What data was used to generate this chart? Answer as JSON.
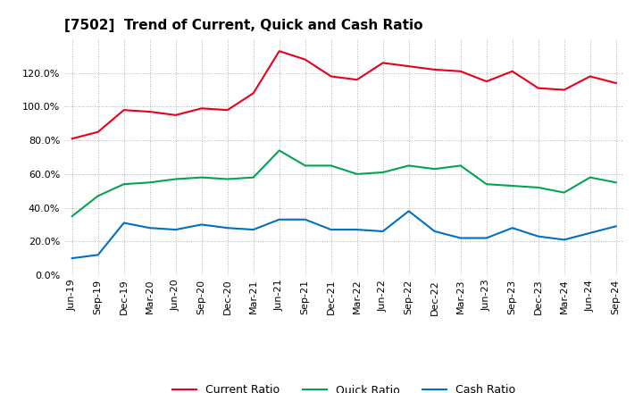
{
  "title": "[7502]  Trend of Current, Quick and Cash Ratio",
  "labels": [
    "Jun-19",
    "Sep-19",
    "Dec-19",
    "Mar-20",
    "Jun-20",
    "Sep-20",
    "Dec-20",
    "Mar-21",
    "Jun-21",
    "Sep-21",
    "Dec-21",
    "Mar-22",
    "Jun-22",
    "Sep-22",
    "Dec-22",
    "Mar-23",
    "Jun-23",
    "Sep-23",
    "Dec-23",
    "Mar-24",
    "Jun-24",
    "Sep-24"
  ],
  "current_ratio": [
    81,
    85,
    98,
    97,
    95,
    99,
    98,
    108,
    133,
    128,
    118,
    116,
    126,
    124,
    122,
    121,
    115,
    121,
    111,
    110,
    118,
    114
  ],
  "quick_ratio": [
    35,
    47,
    54,
    55,
    57,
    58,
    57,
    58,
    74,
    65,
    65,
    60,
    61,
    65,
    63,
    65,
    54,
    53,
    52,
    49,
    58,
    55
  ],
  "cash_ratio": [
    10,
    12,
    31,
    28,
    27,
    30,
    28,
    27,
    33,
    33,
    27,
    27,
    26,
    38,
    26,
    22,
    22,
    28,
    23,
    21,
    25,
    29
  ],
  "current_color": "#e8001c",
  "quick_color": "#00a550",
  "cash_color": "#0070c0",
  "ylim": [
    0,
    140
  ],
  "yticks": [
    0,
    20,
    40,
    60,
    80,
    100,
    120
  ],
  "background_color": "#ffffff",
  "grid_color": "#b0b0b0",
  "title_fontsize": 11,
  "tick_fontsize": 8,
  "legend_labels": [
    "Current Ratio",
    "Quick Ratio",
    "Cash Ratio"
  ]
}
